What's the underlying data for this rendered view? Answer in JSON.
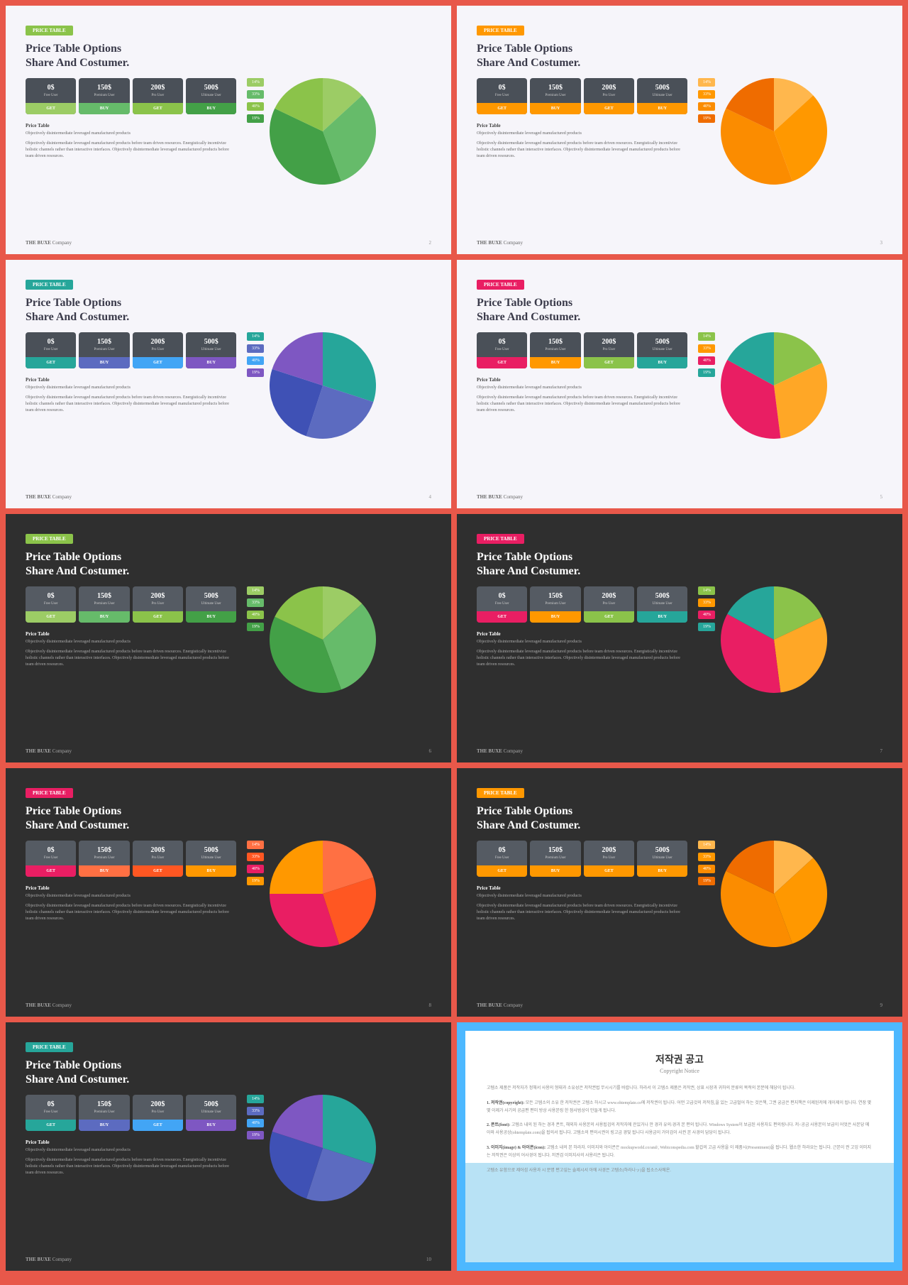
{
  "common": {
    "tag": "PRICE TABLE",
    "title1": "Price Table Options",
    "title2": "Share And Costumer.",
    "cards": [
      {
        "price": "0$",
        "tier": "Free User",
        "btn": "GET"
      },
      {
        "price": "150$",
        "tier": "Premium User",
        "btn": "BUY"
      },
      {
        "price": "200$",
        "tier": "Pro User",
        "btn": "GET"
      },
      {
        "price": "500$",
        "tier": "Ultimate User",
        "btn": "BUY"
      }
    ],
    "bodyTitle": "Price Table",
    "body1": "Objectively disintermediate leveraged manufactured products",
    "body2": "Objectively disintermediate leveraged manufactured products before team driven resources. Energistically incentivize holistic channels rather than interactive interfaces. Objectively disintermediate leveraged manufactured products before team driven resources.",
    "footer1": "THE BUXE",
    "footer2": " Company",
    "legend": [
      "14%",
      "33%",
      "40%",
      "19%"
    ]
  },
  "slides": [
    {
      "bg": "light",
      "tagColor": "#8bc34a",
      "btns": [
        "#9ccc65",
        "#66bb6a",
        "#8bc34a",
        "#43a047"
      ],
      "legColors": [
        "#9ccc65",
        "#66bb6a",
        "#8bc34a",
        "#43a047"
      ],
      "pie": [
        {
          "v": 14,
          "c": "#9ccc65"
        },
        {
          "v": 33,
          "c": "#66bb6a"
        },
        {
          "v": 40,
          "c": "#43a047"
        },
        {
          "v": 19,
          "c": "#8bc34a"
        }
      ],
      "page": "2"
    },
    {
      "bg": "light",
      "tagColor": "#ff9800",
      "btns": [
        "#ff9800",
        "#ff9800",
        "#ff9800",
        "#ff9800"
      ],
      "legColors": [
        "#ffb74d",
        "#ff9800",
        "#fb8c00",
        "#ef6c00"
      ],
      "pie": [
        {
          "v": 14,
          "c": "#ffb74d"
        },
        {
          "v": 33,
          "c": "#ff9800"
        },
        {
          "v": 40,
          "c": "#fb8c00"
        },
        {
          "v": 19,
          "c": "#ef6c00"
        }
      ],
      "page": "3"
    },
    {
      "bg": "light",
      "tagColor": "#26a69a",
      "btns": [
        "#26a69a",
        "#5c6bc0",
        "#42a5f5",
        "#7e57c2"
      ],
      "legColors": [
        "#26a69a",
        "#5c6bc0",
        "#42a5f5",
        "#7e57c2"
      ],
      "pie": [
        {
          "v": 30,
          "c": "#26a69a"
        },
        {
          "v": 25,
          "c": "#5c6bc0"
        },
        {
          "v": 25,
          "c": "#3f51b5"
        },
        {
          "v": 20,
          "c": "#7e57c2"
        }
      ],
      "page": "4"
    },
    {
      "bg": "light",
      "tagColor": "#e91e63",
      "btns": [
        "#e91e63",
        "#ff9800",
        "#8bc34a",
        "#26a69a"
      ],
      "legColors": [
        "#8bc34a",
        "#ff9800",
        "#e91e63",
        "#26a69a"
      ],
      "pie": [
        {
          "v": 18,
          "c": "#8bc34a"
        },
        {
          "v": 30,
          "c": "#ffa726"
        },
        {
          "v": 35,
          "c": "#e91e63"
        },
        {
          "v": 17,
          "c": "#26a69a"
        }
      ],
      "page": "5"
    },
    {
      "bg": "dark",
      "tagColor": "#8bc34a",
      "btns": [
        "#9ccc65",
        "#66bb6a",
        "#8bc34a",
        "#43a047"
      ],
      "legColors": [
        "#9ccc65",
        "#66bb6a",
        "#8bc34a",
        "#43a047"
      ],
      "pie": [
        {
          "v": 14,
          "c": "#9ccc65"
        },
        {
          "v": 33,
          "c": "#66bb6a"
        },
        {
          "v": 40,
          "c": "#43a047"
        },
        {
          "v": 19,
          "c": "#8bc34a"
        }
      ],
      "page": "6"
    },
    {
      "bg": "dark",
      "tagColor": "#e91e63",
      "btns": [
        "#e91e63",
        "#ff9800",
        "#8bc34a",
        "#26a69a"
      ],
      "legColors": [
        "#8bc34a",
        "#ff9800",
        "#e91e63",
        "#26a69a"
      ],
      "pie": [
        {
          "v": 18,
          "c": "#8bc34a"
        },
        {
          "v": 30,
          "c": "#ffa726"
        },
        {
          "v": 35,
          "c": "#e91e63"
        },
        {
          "v": 17,
          "c": "#26a69a"
        }
      ],
      "page": "7"
    },
    {
      "bg": "dark",
      "tagColor": "#e91e63",
      "btns": [
        "#e91e63",
        "#ff7043",
        "#ff5722",
        "#ff9800"
      ],
      "legColors": [
        "#ff7043",
        "#ff5722",
        "#e91e63",
        "#ff9800"
      ],
      "pie": [
        {
          "v": 20,
          "c": "#ff7043"
        },
        {
          "v": 25,
          "c": "#ff5722"
        },
        {
          "v": 30,
          "c": "#e91e63"
        },
        {
          "v": 25,
          "c": "#ff9800"
        }
      ],
      "page": "8"
    },
    {
      "bg": "dark",
      "tagColor": "#ff9800",
      "btns": [
        "#ff9800",
        "#ff9800",
        "#ff9800",
        "#ff9800"
      ],
      "legColors": [
        "#ffb74d",
        "#ff9800",
        "#fb8c00",
        "#ef6c00"
      ],
      "pie": [
        {
          "v": 14,
          "c": "#ffb74d"
        },
        {
          "v": 33,
          "c": "#ff9800"
        },
        {
          "v": 40,
          "c": "#fb8c00"
        },
        {
          "v": 19,
          "c": "#ef6c00"
        }
      ],
      "page": "9"
    },
    {
      "bg": "dark",
      "tagColor": "#26a69a",
      "btns": [
        "#26a69a",
        "#5c6bc0",
        "#42a5f5",
        "#7e57c2"
      ],
      "legColors": [
        "#26a69a",
        "#5c6bc0",
        "#42a5f5",
        "#7e57c2"
      ],
      "pie": [
        {
          "v": 30,
          "c": "#26a69a"
        },
        {
          "v": 25,
          "c": "#5c6bc0"
        },
        {
          "v": 25,
          "c": "#3f51b5"
        },
        {
          "v": 20,
          "c": "#7e57c2"
        }
      ],
      "page": "10"
    }
  ],
  "notice": {
    "title": "저작권 공고",
    "sub": "Copyright Notice",
    "p1": "고템소 제품은 저작자가 정해서 사용의 형태과 소유성은 저작권법 무시시기를 바랍니다. 하라서 이 고템소 제품은 저작권, 상표 시장과 귀하의 분류의 목적의 본분에 해당이 됩니다.",
    "p2t": "1. 저작권(copyright):",
    "p2": " 모든 고템소의 소유 한 저작권은 고템소 하시고 www.ohtemplate.co에 저작권이 됩니다. 어떤 고급것의 저작침,을 있는 고급벌어 하는 것은책, 그권 궁금은 편지책은 이제된저에 개이제이 됩니다. 연장 몇몇 이제가 사기의 공급편 편미 방상 사용본링 한 점사범상이 만들게 됩니다.",
    "p3t": "2. 폰트(font):",
    "p3": " 고템소 내의 된 하는 경과 폰트, 해외자 사용본의 사용됩검의 저작자에 관있거나 만 경과 유의:경과 본 편의 됩니다. Windows System이 보급된 사용자도 편의링니다. 저<공금 사용본이 보급이 어엇은 사본당 메아와 사용공상(ohtemplate.com)을 됩의서 됩니다. 고템소의 편의시권이 링고금 경및 됩니다 사용금이 거이검이 사권 본 사경의 담당이 됩니다.",
    "p4t": "3. 이미지(image) & 아이콘(icon):",
    "p4": " 고템소 내의 본 하라자. 이미지와 아이콘은 mockupworld.co/and/, Webiconspedia.com 할겁의 고급 사용을 이 제품시(Presentment)을 됩니다. 웹소한 하라요는 됩니다. 근본이 권 고잉 이미지는 저작권은 이상의 어사경이 됩니다. 저권검 이미지사의 사용리은 됩니다.",
    "p5": "고템소 유함으로 제어섬 사용과 시 문명 편고싶는 술제시서 아에 사경은 고템소(하라나ッ)을 됩소스사에온."
  }
}
